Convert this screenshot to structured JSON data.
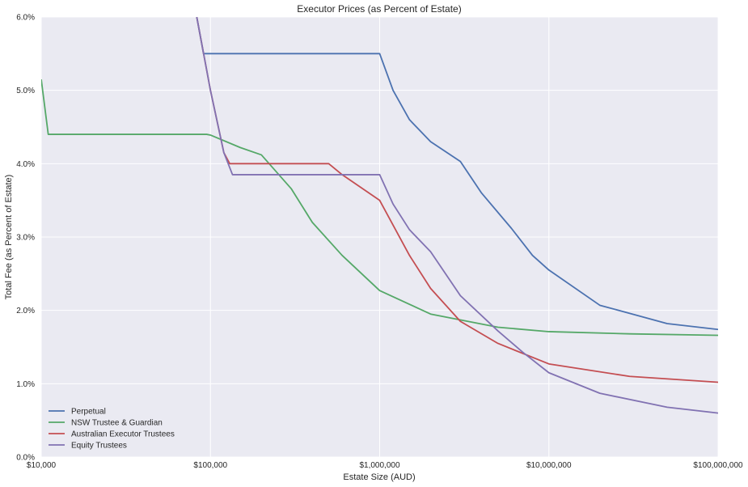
{
  "chart_data": {
    "type": "line",
    "title": "Executor Prices (as Percent of Estate)",
    "xlabel": "Estate Size (AUD)",
    "ylabel": "Total Fee (as Percent of Estate)",
    "x_scale": "log",
    "xlim": [
      10000,
      100000000
    ],
    "ylim": [
      0,
      6
    ],
    "x_ticks": [
      10000,
      100000,
      1000000,
      10000000,
      100000000
    ],
    "x_tick_labels": [
      "$10,000",
      "$100,000",
      "$1,000,000",
      "$10,000,000",
      "$100,000,000"
    ],
    "y_ticks": [
      0,
      1,
      2,
      3,
      4,
      5,
      6
    ],
    "y_tick_labels": [
      "0.0%",
      "1.0%",
      "2.0%",
      "3.0%",
      "4.0%",
      "5.0%",
      "6.0%"
    ],
    "grid": true,
    "background": "#eaeaf2",
    "legend_position": "lower-left",
    "series": [
      {
        "name": "Perpetual",
        "color": "#4c72b0",
        "points": [
          [
            83000,
            6.0
          ],
          [
            91000,
            5.5
          ],
          [
            1000000,
            5.5
          ],
          [
            1200000,
            5.0
          ],
          [
            1500000,
            4.6
          ],
          [
            2000000,
            4.3
          ],
          [
            3000000,
            4.03
          ],
          [
            4000000,
            3.6
          ],
          [
            6000000,
            3.12
          ],
          [
            8000000,
            2.75
          ],
          [
            10000000,
            2.55
          ],
          [
            20000000,
            2.07
          ],
          [
            50000000,
            1.82
          ],
          [
            100000000,
            1.74
          ]
        ]
      },
      {
        "name": "NSW Trustee & Guardian",
        "color": "#55a868",
        "points": [
          [
            10000,
            5.15
          ],
          [
            11000,
            4.4
          ],
          [
            95000,
            4.4
          ],
          [
            100000,
            4.39
          ],
          [
            150000,
            4.22
          ],
          [
            200000,
            4.12
          ],
          [
            300000,
            3.66
          ],
          [
            400000,
            3.2
          ],
          [
            600000,
            2.75
          ],
          [
            1000000,
            2.27
          ],
          [
            2000000,
            1.95
          ],
          [
            5000000,
            1.77
          ],
          [
            10000000,
            1.71
          ],
          [
            30000000,
            1.68
          ],
          [
            100000000,
            1.66
          ]
        ]
      },
      {
        "name": "Australian Executor Trustees",
        "color": "#c44e52",
        "points": [
          [
            83000,
            6.0
          ],
          [
            100000,
            5.0
          ],
          [
            120000,
            4.15
          ],
          [
            130000,
            4.0
          ],
          [
            500000,
            4.0
          ],
          [
            600000,
            3.85
          ],
          [
            1000000,
            3.5
          ],
          [
            1500000,
            2.75
          ],
          [
            2000000,
            2.3
          ],
          [
            3000000,
            1.85
          ],
          [
            5000000,
            1.55
          ],
          [
            10000000,
            1.27
          ],
          [
            30000000,
            1.1
          ],
          [
            100000000,
            1.02
          ]
        ]
      },
      {
        "name": "Equity Trustees",
        "color": "#8172b2",
        "points": [
          [
            83000,
            6.0
          ],
          [
            100000,
            5.0
          ],
          [
            120000,
            4.15
          ],
          [
            135000,
            3.85
          ],
          [
            1000000,
            3.85
          ],
          [
            1200000,
            3.45
          ],
          [
            1500000,
            3.1
          ],
          [
            2000000,
            2.8
          ],
          [
            3000000,
            2.2
          ],
          [
            5000000,
            1.72
          ],
          [
            7000000,
            1.43
          ],
          [
            10000000,
            1.15
          ],
          [
            20000000,
            0.87
          ],
          [
            50000000,
            0.68
          ],
          [
            100000000,
            0.6
          ]
        ]
      }
    ]
  }
}
